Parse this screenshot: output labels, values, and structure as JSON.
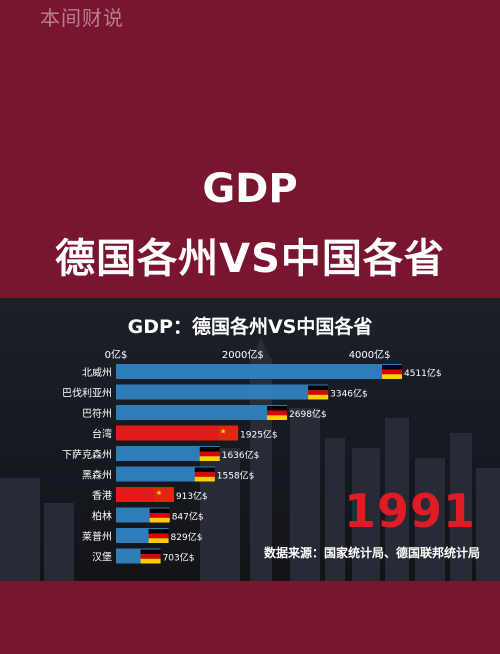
{
  "watermark": "本间财说",
  "headline": {
    "line1": "GDP",
    "line2": "德国各州VS中国各省"
  },
  "chart_data": {
    "type": "bar",
    "orientation": "horizontal",
    "title": "GDP：德国各州VS中国各省",
    "x_ticks": [
      "0亿$",
      "2000亿$",
      "4000亿$"
    ],
    "x_tick_values": [
      0,
      2000,
      4000
    ],
    "xlim": [
      0,
      5000
    ],
    "unit": "亿$",
    "categories": [
      "北威州",
      "巴伐利亚州",
      "巴符州",
      "台湾",
      "下萨克森州",
      "黑森州",
      "香港",
      "柏林",
      "莱普州",
      "汉堡"
    ],
    "values": [
      4511,
      3346,
      2698,
      1925,
      1636,
      1558,
      913,
      847,
      829,
      703
    ],
    "value_labels": [
      "4511亿$",
      "3346亿$",
      "2698亿$",
      "1925亿$",
      "1636亿$",
      "1558亿$",
      "913亿$",
      "847亿$",
      "829亿$",
      "703亿$"
    ],
    "flags": [
      "germany",
      "germany",
      "germany",
      "china",
      "germany",
      "germany",
      "china",
      "germany",
      "germany",
      "germany"
    ],
    "colors": {
      "germany": "#2e7cb8",
      "china": "#e01b1b"
    },
    "year": "1991",
    "source": "数据来源：国家统计局、德国联邦统计局"
  }
}
